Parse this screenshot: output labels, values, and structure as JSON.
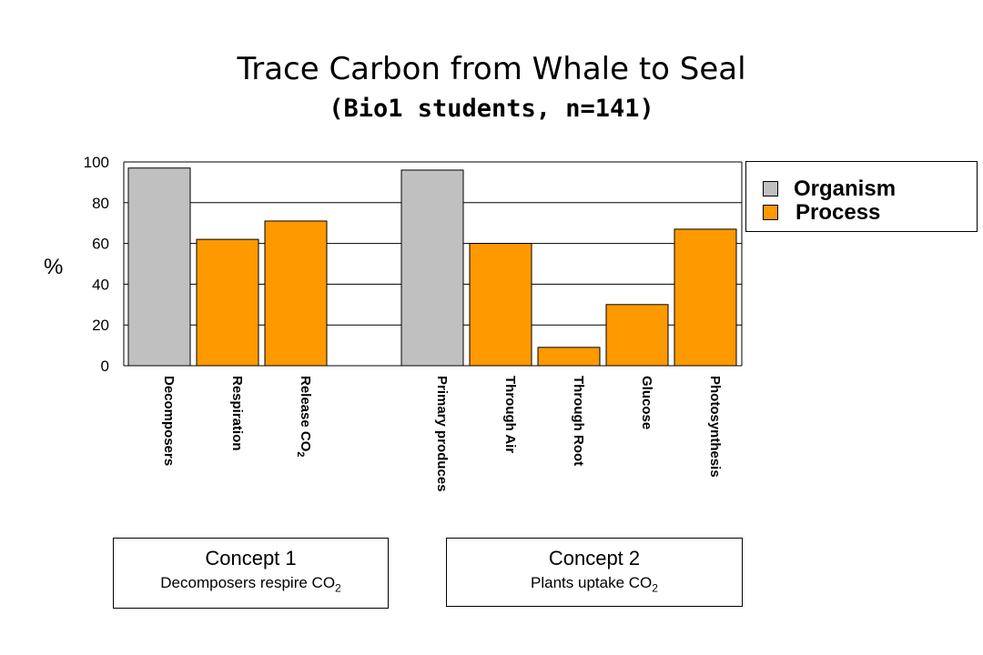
{
  "chart_data": {
    "type": "bar",
    "title": "Trace Carbon from Whale to Seal",
    "subtitle": "(Bio1 students, n=141)",
    "ylabel": "%",
    "ylim": [
      0,
      100
    ],
    "yticks": [
      "0",
      "20",
      "40",
      "60",
      "80",
      "100"
    ],
    "grid": true,
    "legend_position": "top-right",
    "legend": [
      {
        "name": "Organism",
        "color": "#c0c0c0"
      },
      {
        "name": "Process",
        "color": "#ff9900"
      }
    ],
    "categories": [
      {
        "label": "Decomposers",
        "value": 97,
        "series": "Organism"
      },
      {
        "label": "Respiration",
        "value": 62,
        "series": "Process"
      },
      {
        "label": "Release CO",
        "sub": "2",
        "value": 71,
        "series": "Process"
      },
      {
        "label": "Primary produces",
        "value": 96,
        "series": "Organism"
      },
      {
        "label": "Through Air",
        "value": 60,
        "series": "Process"
      },
      {
        "label": "Through Root",
        "value": 9,
        "series": "Process"
      },
      {
        "label": "Glucose",
        "value": 30,
        "series": "Process"
      },
      {
        "label": "Photosynthesis",
        "value": 67,
        "series": "Process"
      }
    ]
  },
  "concepts": [
    {
      "title": "Concept 1",
      "text": "Decomposers respire CO",
      "sub": "2"
    },
    {
      "title": "Concept 2",
      "text": "Plants uptake CO",
      "sub": "2"
    }
  ]
}
